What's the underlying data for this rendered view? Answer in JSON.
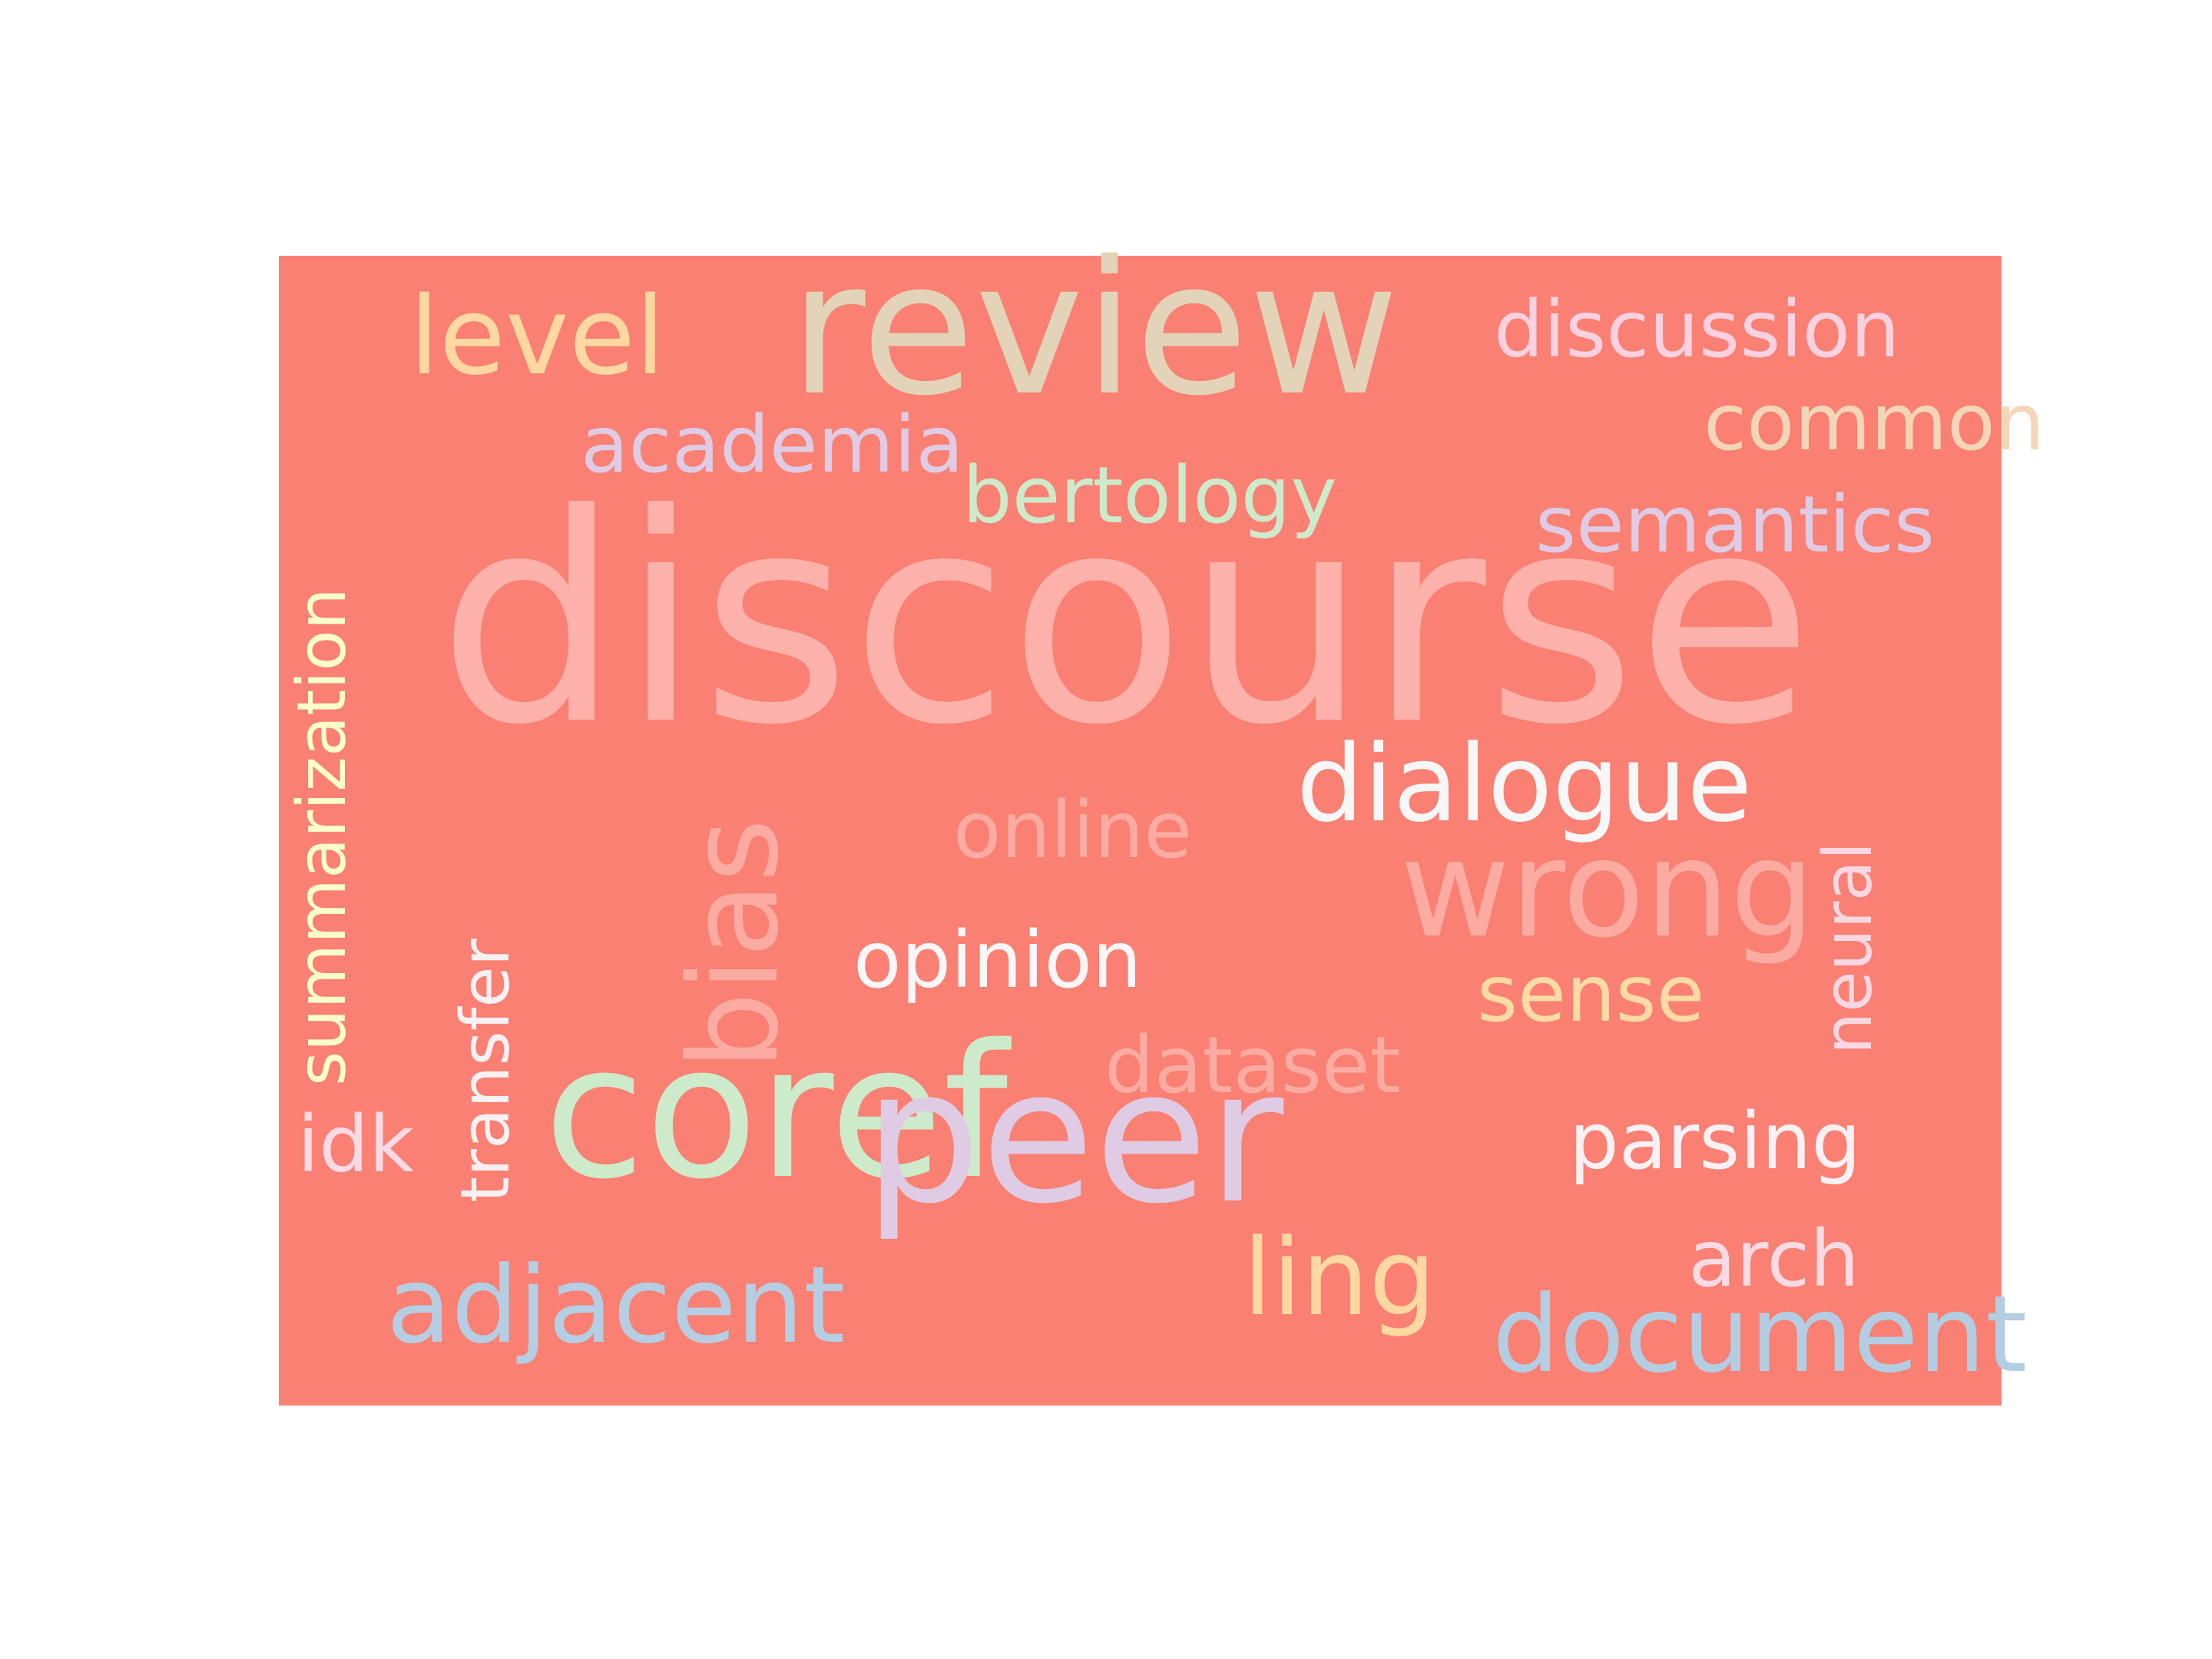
{
  "background_color": "#F98072",
  "words": [
    {
      "text": "discourse",
      "color": "#FCB1AA"
    },
    {
      "text": "review",
      "color": "#E3D3B8"
    },
    {
      "text": "coref",
      "color": "#CDEACB"
    },
    {
      "text": "peer",
      "color": "#DFCBE4"
    },
    {
      "text": "dialogue",
      "color": "#F7F7F7"
    },
    {
      "text": "wrong",
      "color": "#FBABA2"
    },
    {
      "text": "bias",
      "color": "#FBABA2"
    },
    {
      "text": "level",
      "color": "#FFD7A1"
    },
    {
      "text": "discussion",
      "color": "#FBD0DF"
    },
    {
      "text": "common",
      "color": "#F5D5B7"
    },
    {
      "text": "academia",
      "color": "#DFCBE4"
    },
    {
      "text": "bertology",
      "color": "#CDEACB"
    },
    {
      "text": "semantics",
      "color": "#DFCBE4"
    },
    {
      "text": "summarization",
      "color": "#FFFFCC"
    },
    {
      "text": "online",
      "color": "#FBABA2"
    },
    {
      "text": "neural",
      "color": "#FBD7E4"
    },
    {
      "text": "transfer",
      "color": "#F8F1F3"
    },
    {
      "text": "opinion",
      "color": "#FBF6F8"
    },
    {
      "text": "sense",
      "color": "#FFDAA3"
    },
    {
      "text": "dataset",
      "color": "#FBABA2"
    },
    {
      "text": "idk",
      "color": "#FBD9E5"
    },
    {
      "text": "parsing",
      "color": "#FBF1F4"
    },
    {
      "text": "arch",
      "color": "#FBDAE4"
    },
    {
      "text": "ling",
      "color": "#FFD8A1"
    },
    {
      "text": "adjacent",
      "color": "#B5CEE3"
    },
    {
      "text": "document",
      "color": "#B3CDE3"
    }
  ]
}
